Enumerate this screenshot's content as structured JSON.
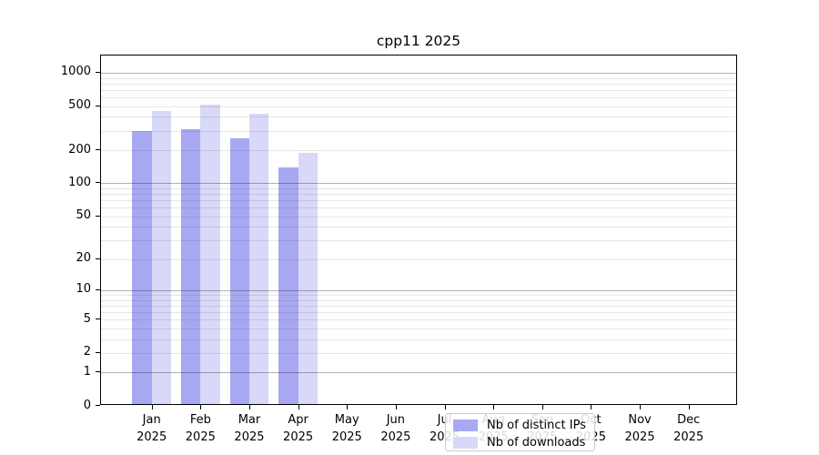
{
  "chart_data": {
    "type": "bar",
    "title": "cpp11 2025",
    "year": "2025",
    "months": [
      "Jan",
      "Feb",
      "Mar",
      "Apr",
      "May",
      "Jun",
      "Jul",
      "Aug",
      "Sep",
      "Oct",
      "Nov",
      "Dec"
    ],
    "categories": [
      "Jan 2025",
      "Feb 2025",
      "Mar 2025",
      "Apr 2025",
      "May 2025",
      "Jun 2025",
      "Jul 2025",
      "Aug 2025",
      "Sep 2025",
      "Oct 2025",
      "Nov 2025",
      "Dec 2025"
    ],
    "series": [
      {
        "name": "Nb of distinct IPs",
        "color": "#a8a8f2",
        "values": [
          290,
          306,
          253,
          137,
          0,
          0,
          0,
          0,
          0,
          0,
          0,
          0
        ]
      },
      {
        "name": "Nb of downloads",
        "color": "#d8d8f8",
        "values": [
          444,
          507,
          417,
          187,
          0,
          0,
          0,
          0,
          0,
          0,
          0,
          0
        ]
      }
    ],
    "y_axis": {
      "scale": "log1p",
      "ticks": [
        0,
        1,
        2,
        5,
        10,
        20,
        50,
        100,
        200,
        500,
        1000
      ],
      "major_gridlines": [
        1,
        10,
        100,
        1000
      ],
      "ylim": [
        0,
        1430
      ]
    },
    "grid": true,
    "legend_position": "lower center",
    "colors": {
      "distinct_ips": "#a8a8f2",
      "downloads": "#d8d8f8",
      "major_grid": "#b3b3b3",
      "minor_grid": "#e8e8e8",
      "axis": "#000000",
      "legend_border": "#cccccc"
    }
  }
}
